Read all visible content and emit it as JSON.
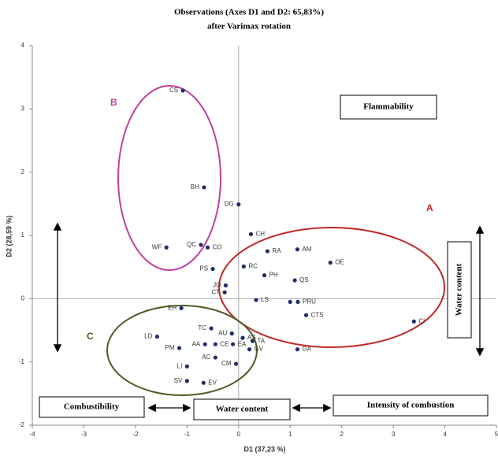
{
  "chart_data": {
    "type": "scatter",
    "title": "Observations (Axes D1 and D2: 65,83%)",
    "subtitle": "after Varimax rotation",
    "x_label": "D1 (37,23 %)",
    "y_label": "D2 (28,59 %)",
    "xlim": [
      -4,
      5
    ],
    "xticks": [
      -4,
      -3,
      -2,
      -1,
      0,
      1,
      2,
      3,
      4,
      5
    ],
    "ylim": [
      -2,
      4
    ],
    "yticks": [
      -2,
      -1,
      0,
      1,
      2,
      3,
      4
    ],
    "color": "#1f2d6e",
    "labels": [
      "CS",
      "BH",
      "DG",
      "CH",
      "WF",
      "QC",
      "CO",
      "RA",
      "AM",
      "OE",
      "RC",
      "PS",
      "PH",
      "QS",
      "JO",
      "CT",
      "LS",
      "PRU",
      "CTS",
      "CI",
      "EH",
      "TC",
      "AU",
      "LD",
      "AS",
      "TA",
      "PM",
      "AA",
      "CE",
      "EA",
      "GV",
      "GA",
      "AC",
      "CM",
      "LI",
      "SV",
      "EV",
      null
    ],
    "x": [
      -1.08,
      -0.67,
      0.0,
      0.24,
      -1.4,
      -0.73,
      -0.6,
      0.56,
      1.14,
      1.78,
      0.1,
      -0.5,
      0.5,
      1.09,
      -0.25,
      -0.27,
      0.34,
      1.15,
      1.31,
      3.4,
      -1.11,
      -0.53,
      -0.13,
      -1.58,
      0.08,
      0.27,
      -1.15,
      -0.65,
      -0.45,
      -0.11,
      0.21,
      1.14,
      -0.45,
      -0.05,
      -1.0,
      -1.0,
      -0.68,
      1.0
    ],
    "y": [
      3.29,
      1.76,
      1.49,
      1.02,
      0.81,
      0.85,
      0.81,
      0.75,
      0.78,
      0.57,
      0.51,
      0.47,
      0.37,
      0.29,
      0.21,
      0.1,
      -0.02,
      -0.05,
      -0.26,
      -0.36,
      -0.15,
      -0.47,
      -0.55,
      -0.6,
      -0.62,
      -0.67,
      -0.78,
      -0.72,
      -0.72,
      -0.72,
      -0.8,
      -0.8,
      -0.93,
      -1.03,
      -1.07,
      -1.3,
      -1.33,
      -0.05
    ],
    "groups": [
      "A",
      "B",
      "C"
    ],
    "annotations": [
      "Flammability",
      "Water content",
      "Combustibility",
      "Water content",
      "Intensity of combustion"
    ]
  }
}
